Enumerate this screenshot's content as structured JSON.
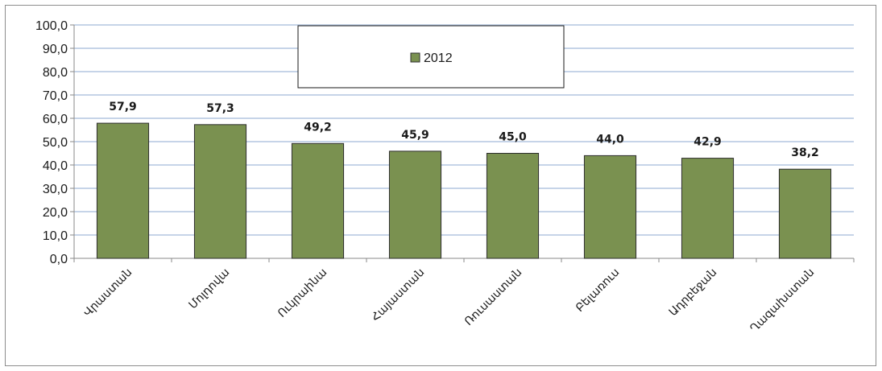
{
  "chart_data": {
    "type": "bar",
    "categories": [
      "Վրաստան",
      "Մոլդովա",
      "Ուկրաինա",
      "Հայաստան",
      "Ռուսաստան",
      "Բելառուս",
      "Ադրբեջան",
      "Ղազախստան"
    ],
    "series": [
      {
        "name": "2012",
        "values": [
          57.9,
          57.3,
          49.2,
          45.9,
          45.0,
          44.0,
          42.9,
          38.2
        ],
        "value_labels": [
          "57,9",
          "57,3",
          "49,2",
          "45,9",
          "45,0",
          "44,0",
          "42,9",
          "38,2"
        ]
      }
    ],
    "ylim": [
      0,
      100
    ],
    "yticks": [
      "0,0",
      "10,0",
      "20,0",
      "30,0",
      "40,0",
      "50,0",
      "60,0",
      "70,0",
      "80,0",
      "90,0",
      "100,0"
    ],
    "grid": true,
    "legend_position": "top-center"
  },
  "colors": {
    "bar": "#7a9150",
    "bar_edge": "#2e2e2e",
    "grid": "#b3c6e0",
    "axis": "#8a8a8a"
  }
}
